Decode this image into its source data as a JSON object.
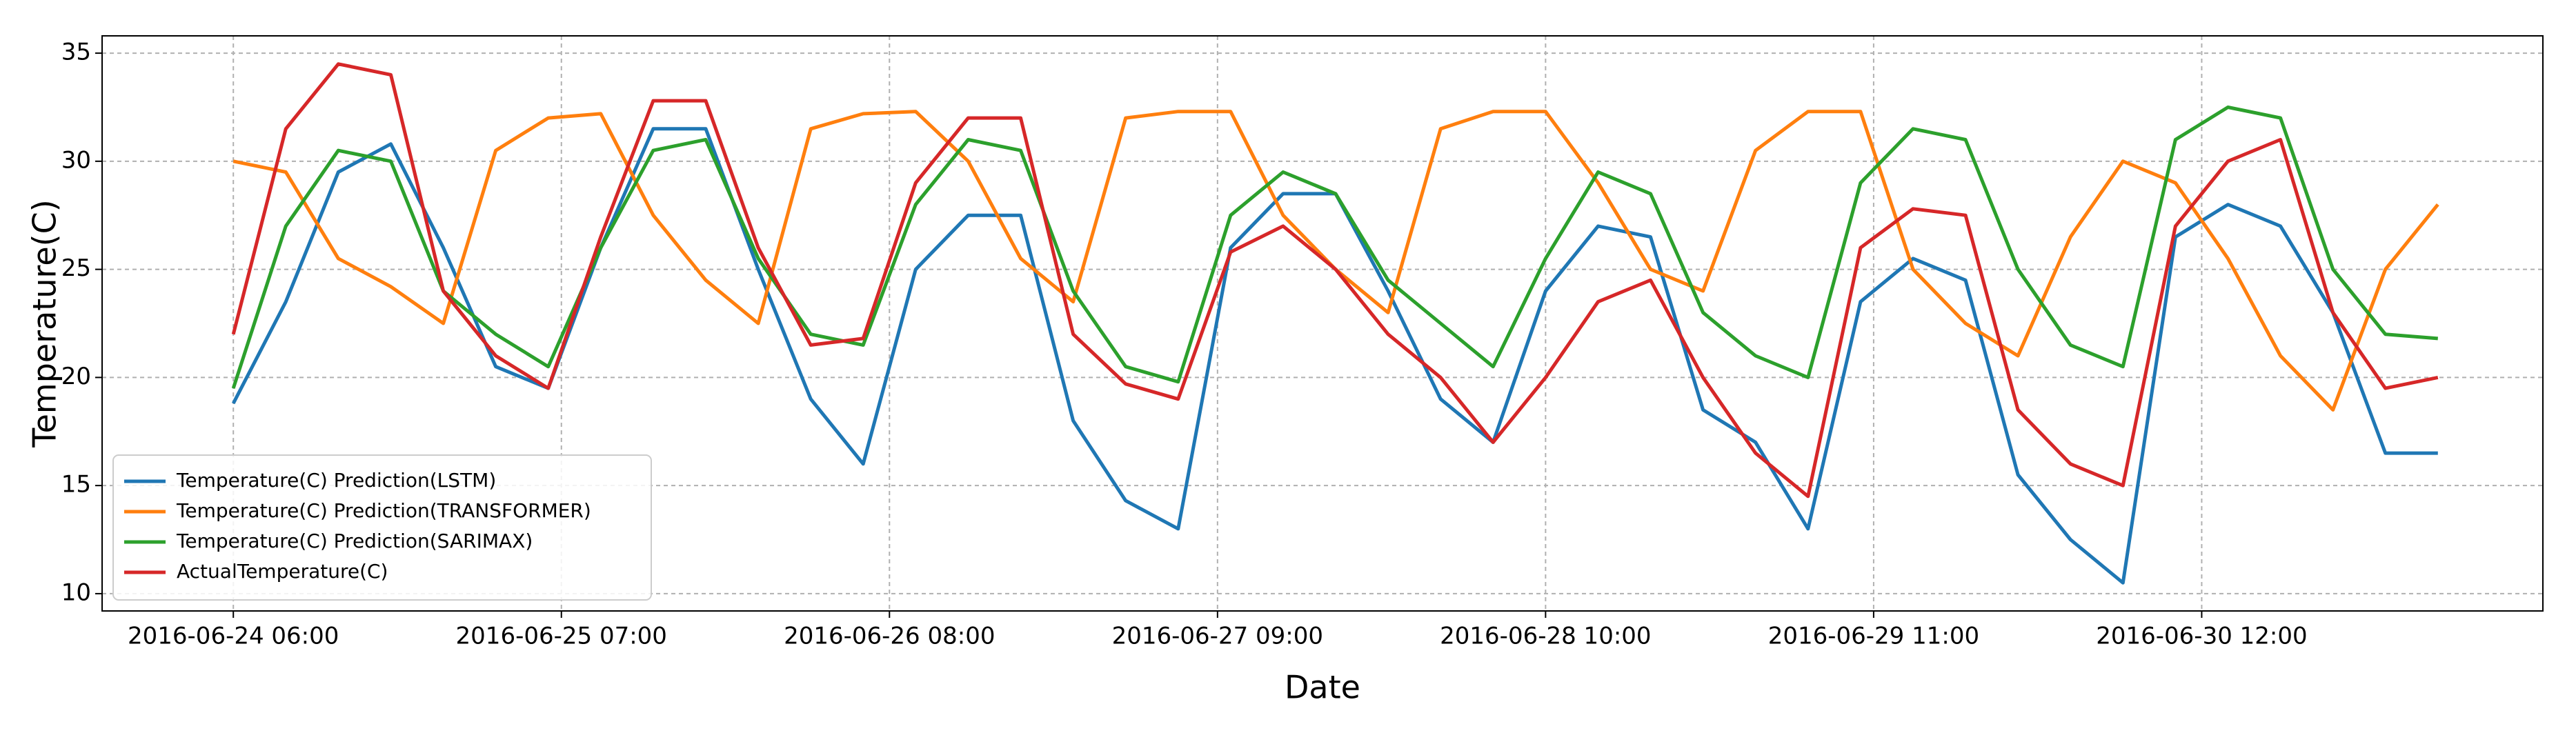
{
  "chart_data": {
    "type": "line",
    "x_label": "Date",
    "y_label": "Temperature(C)",
    "x": [
      "2016-06-24 06:00",
      "2016-06-24 10:00",
      "2016-06-24 14:00",
      "2016-06-24 18:00",
      "2016-06-24 22:00",
      "2016-06-25 02:00",
      "2016-06-25 06:00",
      "2016-06-25 10:00",
      "2016-06-25 14:00",
      "2016-06-25 18:00",
      "2016-06-25 22:00",
      "2016-06-26 02:00",
      "2016-06-26 06:00",
      "2016-06-26 10:00",
      "2016-06-26 14:00",
      "2016-06-26 18:00",
      "2016-06-26 22:00",
      "2016-06-27 02:00",
      "2016-06-27 06:00",
      "2016-06-27 10:00",
      "2016-06-27 14:00",
      "2016-06-27 18:00",
      "2016-06-27 22:00",
      "2016-06-28 02:00",
      "2016-06-28 06:00",
      "2016-06-28 10:00",
      "2016-06-28 14:00",
      "2016-06-28 18:00",
      "2016-06-28 22:00",
      "2016-06-29 02:00",
      "2016-06-29 06:00",
      "2016-06-29 10:00",
      "2016-06-29 14:00",
      "2016-06-29 18:00",
      "2016-06-29 22:00",
      "2016-06-30 02:00",
      "2016-06-30 06:00",
      "2016-06-30 10:00",
      "2016-06-30 14:00",
      "2016-06-30 18:00",
      "2016-06-30 22:00",
      "2016-07-01 02:00",
      "2016-07-01 06:00"
    ],
    "series": [
      {
        "name": "Temperature(C) Prediction(LSTM)",
        "color": "#1f77b4",
        "values": [
          18.8,
          23.5,
          29.5,
          30.8,
          26,
          20.5,
          19.5,
          26,
          31.5,
          31.5,
          25,
          19,
          16,
          25,
          27.5,
          27.5,
          18,
          14.3,
          13,
          26,
          28.5,
          28.5,
          24,
          19,
          17,
          24,
          27,
          26.5,
          18.5,
          17,
          13,
          23.5,
          25.5,
          24.5,
          15.5,
          12.5,
          10.5,
          26.5,
          28,
          27,
          23,
          16.5,
          16.5
        ]
      },
      {
        "name": "Temperature(C) Prediction(TRANSFORMER)",
        "color": "#ff7f0e",
        "values": [
          30,
          29.5,
          25.5,
          24.2,
          22.5,
          30.5,
          32,
          32.2,
          27.5,
          24.5,
          22.5,
          31.5,
          32.2,
          32.3,
          30,
          25.5,
          23.5,
          32,
          32.3,
          32.3,
          27.5,
          25,
          23,
          31.5,
          32.3,
          32.3,
          29,
          25,
          24,
          30.5,
          32.3,
          32.3,
          25,
          22.5,
          21,
          26.5,
          30,
          29,
          25.5,
          21,
          18.5,
          25,
          28
        ]
      },
      {
        "name": "Temperature(C) Prediction(SARIMAX)",
        "color": "#2ca02c",
        "values": [
          19.5,
          27,
          30.5,
          30,
          24,
          22,
          20.5,
          26,
          30.5,
          31,
          25.5,
          22,
          21.5,
          28,
          31,
          30.5,
          24,
          20.5,
          19.8,
          27.5,
          29.5,
          28.5,
          24.5,
          22.5,
          20.5,
          25.5,
          29.5,
          28.5,
          23,
          21,
          20,
          29,
          31.5,
          31,
          25,
          21.5,
          20.5,
          31,
          32.5,
          32,
          25,
          22,
          21.8
        ]
      },
      {
        "name": "ActualTemperature(C)",
        "color": "#d62728",
        "values": [
          22,
          31.5,
          34.5,
          34,
          24,
          21,
          19.5,
          26.5,
          32.8,
          32.8,
          26,
          21.5,
          21.8,
          29,
          32,
          32,
          22,
          19.7,
          19,
          25.8,
          27,
          25,
          22,
          20,
          17,
          20,
          23.5,
          24.5,
          20,
          16.5,
          14.5,
          26,
          27.8,
          27.5,
          18.5,
          16,
          15,
          27,
          30,
          31,
          23,
          19.5,
          20
        ]
      }
    ],
    "xlim": [
      "2016-06-23 20:00",
      "2016-07-01 14:00"
    ],
    "xticks": [
      "2016-06-24 06:00",
      "2016-06-25 07:00",
      "2016-06-26 08:00",
      "2016-06-27 09:00",
      "2016-06-28 10:00",
      "2016-06-29 11:00",
      "2016-06-30 12:00"
    ],
    "ylim": [
      9.2,
      35.8
    ],
    "yticks": [
      10,
      15,
      20,
      25,
      30,
      35
    ],
    "grid": true,
    "legend": "lower left"
  }
}
